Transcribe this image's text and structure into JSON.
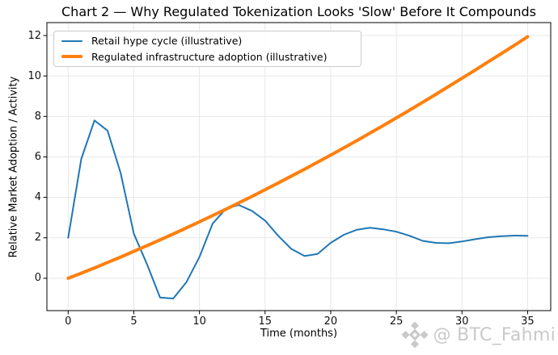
{
  "title": "Chart 2 — Why Regulated Tokenization Looks 'Slow' Before It Compounds",
  "colors": {
    "retail_line": "#1f77b4",
    "regulated_line": "#ff7f0e",
    "grid": "#e7e7e7",
    "spine": "#000000",
    "tick": "#000000",
    "watermark": "#c9c9c9",
    "background": "#ffffff"
  },
  "chart_data": {
    "type": "line",
    "title": "Chart 2 — Why Regulated Tokenization Looks 'Slow' Before It Compounds",
    "xlabel": "Time (months)",
    "ylabel": "Relative Market Adoption / Activity",
    "x_ticks": [
      0,
      5,
      10,
      15,
      20,
      25,
      30,
      35
    ],
    "y_ticks": [
      0,
      2,
      4,
      6,
      8,
      10,
      12
    ],
    "xlim": [
      -1.62,
      36.76
    ],
    "ylim": [
      -1.6,
      12.64
    ],
    "grid": true,
    "legend_position": "upper left",
    "x": [
      0,
      1,
      2,
      3,
      4,
      5,
      6,
      7,
      8,
      9,
      10,
      11,
      12,
      13,
      14,
      15,
      16,
      17,
      18,
      19,
      20,
      21,
      22,
      23,
      24,
      25,
      26,
      27,
      28,
      29,
      30,
      31,
      32,
      33,
      34,
      35
    ],
    "series": [
      {
        "name": "Retail hype cycle (illustrative)",
        "color": "#1f77b4",
        "line_width": 2,
        "values": [
          2.0,
          5.9,
          7.8,
          7.3,
          5.2,
          2.2,
          0.7,
          -0.95,
          -1.0,
          -0.2,
          1.05,
          2.7,
          3.43,
          3.62,
          3.33,
          2.85,
          2.1,
          1.45,
          1.1,
          1.2,
          1.75,
          2.15,
          2.4,
          2.5,
          2.42,
          2.3,
          2.1,
          1.85,
          1.75,
          1.73,
          1.82,
          1.93,
          2.03,
          2.08,
          2.11,
          2.1
        ]
      },
      {
        "name": "Regulated infrastructure adoption (illustrative)",
        "color": "#ff7f0e",
        "line_width": 4,
        "values": [
          0.0,
          0.25,
          0.51,
          0.78,
          1.05,
          1.33,
          1.61,
          1.9,
          2.19,
          2.49,
          2.79,
          3.1,
          3.41,
          3.73,
          4.05,
          4.38,
          4.71,
          5.05,
          5.39,
          5.74,
          6.09,
          6.45,
          6.81,
          7.18,
          7.55,
          7.93,
          8.31,
          8.7,
          9.09,
          9.49,
          9.89,
          10.29,
          10.7,
          11.11,
          11.52,
          11.94
        ]
      }
    ]
  },
  "watermark": {
    "icon": "binance-logo-icon",
    "text": "@ BTC_Fahmi"
  }
}
